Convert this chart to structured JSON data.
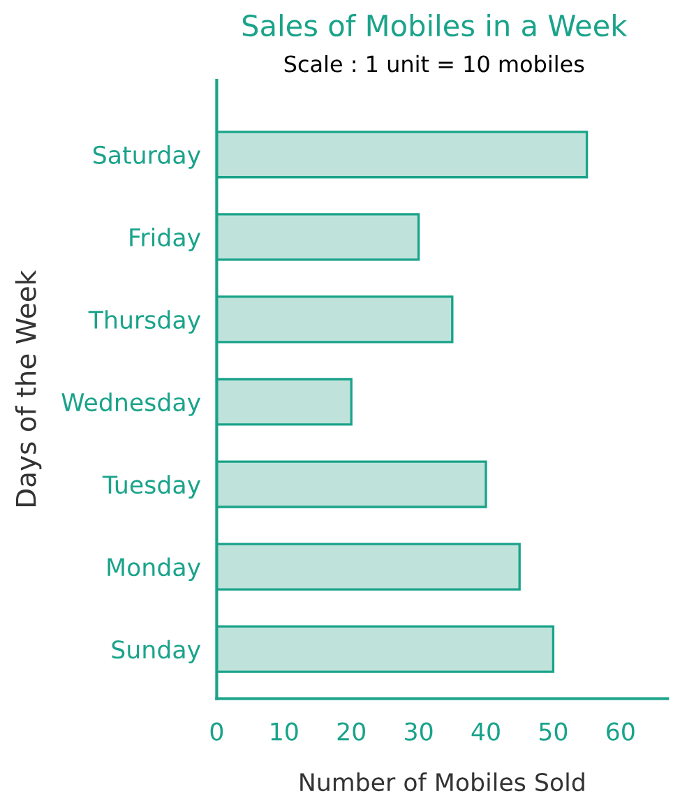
{
  "chart_data": {
    "type": "bar",
    "orientation": "horizontal",
    "title": "Sales of Mobiles in a Week",
    "subtitle": "Scale : 1 unit = 10 mobiles",
    "xlabel": "Number of Mobiles Sold",
    "ylabel": "Days of the Week",
    "categories": [
      "Saturday",
      "Friday",
      "Thursday",
      "Wednesday",
      "Tuesday",
      "Monday",
      "Sunday"
    ],
    "values": [
      55,
      30,
      35,
      20,
      40,
      45,
      50
    ],
    "color": "#bfe3da",
    "xlim": [
      0,
      67
    ],
    "xticks": [
      0,
      10,
      20,
      30,
      40,
      50,
      60
    ],
    "grid": false
  }
}
